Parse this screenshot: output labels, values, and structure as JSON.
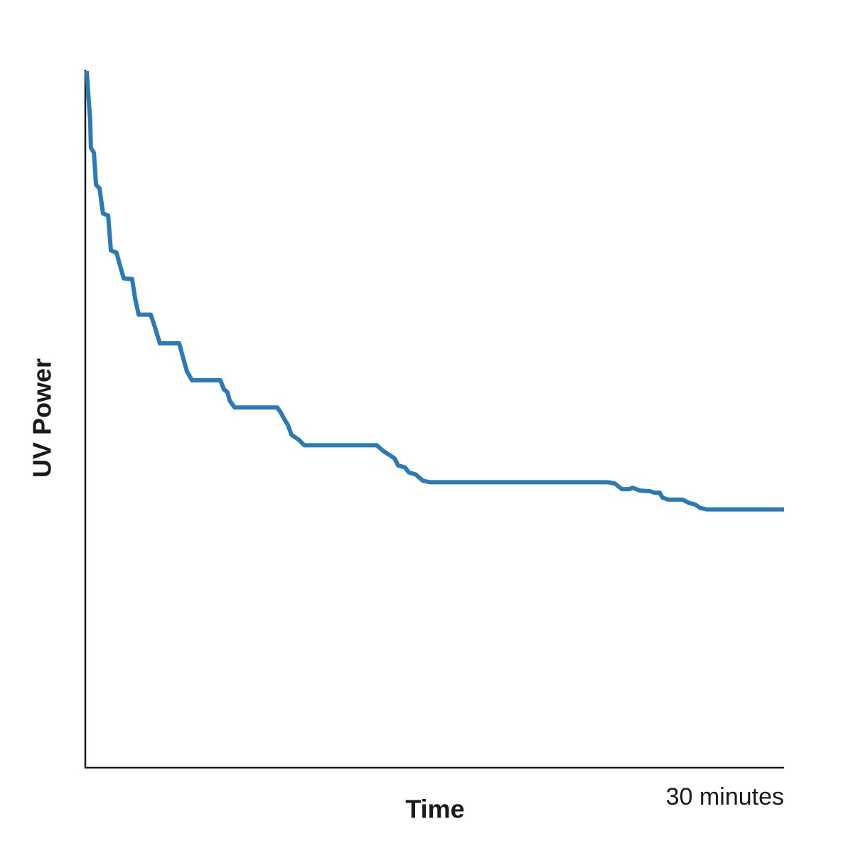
{
  "chart_data": {
    "type": "line",
    "x_label": "Time",
    "y_label": "UV Power",
    "xlim": [
      0,
      30
    ],
    "xticks": [
      {
        "value": 30,
        "label": "30 minutes"
      }
    ],
    "ylim": [
      0,
      100
    ],
    "grid": false,
    "series": [
      {
        "color": "#2a7ab8",
        "x": [
          0.06,
          0.21,
          0.24,
          0.37,
          0.46,
          0.61,
          0.76,
          0.98,
          1.1,
          1.34,
          1.46,
          1.65,
          2.01,
          2.14,
          2.29,
          2.81,
          2.99,
          3.2,
          4.03,
          4.21,
          4.36,
          4.58,
          5.8,
          5.95,
          6.1,
          6.2,
          6.41,
          8.24,
          8.39,
          8.55,
          8.7,
          8.85,
          9.16,
          9.4,
          12.51,
          12.82,
          13.06,
          13.28,
          13.43,
          13.73,
          13.89,
          14.19,
          14.5,
          14.8,
          22.43,
          22.74,
          23.04,
          23.35,
          23.5,
          23.81,
          24.26,
          24.42,
          24.66,
          24.78,
          25.03,
          25.64,
          25.94,
          26.19,
          26.4,
          26.7,
          30.0
        ],
        "values": [
          99.8,
          92.7,
          88.8,
          88.1,
          83.5,
          83.0,
          79.4,
          79.1,
          74.1,
          73.8,
          72.3,
          70.1,
          70.0,
          67.2,
          64.9,
          64.9,
          63.1,
          60.8,
          60.8,
          58.6,
          56.8,
          55.5,
          55.5,
          54.2,
          53.8,
          52.6,
          51.6,
          51.6,
          50.9,
          49.9,
          49.1,
          47.7,
          47.0,
          46.2,
          46.2,
          45.3,
          44.8,
          44.3,
          43.3,
          43.0,
          42.3,
          42.0,
          41.1,
          40.9,
          40.9,
          40.7,
          39.9,
          39.9,
          40.1,
          39.7,
          39.6,
          39.4,
          39.4,
          38.7,
          38.4,
          38.4,
          37.9,
          37.7,
          37.2,
          37.0,
          37.0
        ]
      }
    ]
  }
}
